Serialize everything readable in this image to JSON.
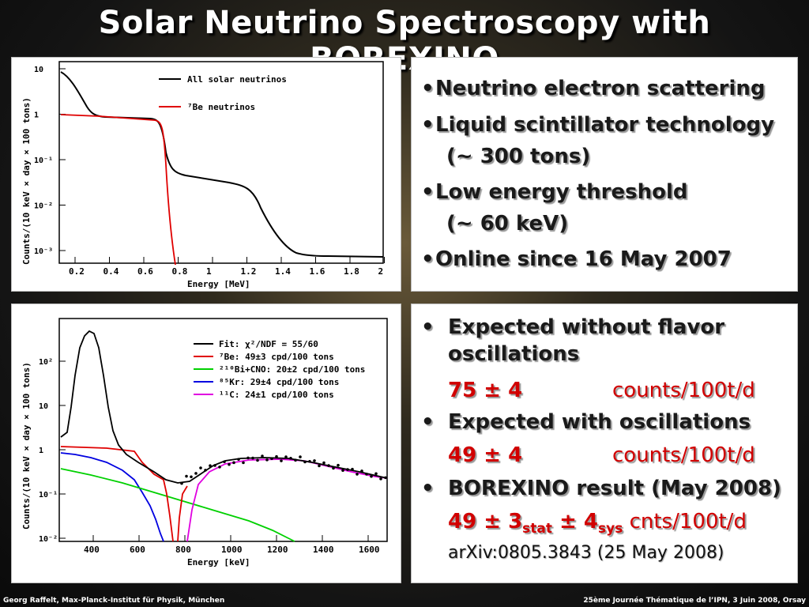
{
  "title": "Solar Neutrino Spectroscopy with BOREXINO",
  "plot1": {
    "ylabel": "Counts/(10 keV × day × 100 tons)",
    "xlabel": "Energy [MeV]",
    "xticks": [
      "0.2",
      "0.4",
      "0.6",
      "0.8",
      "1",
      "1.2",
      "1.4",
      "1.6",
      "1.8",
      "2"
    ],
    "yticks": [
      "10",
      "1",
      "10⁻¹",
      "10⁻²",
      "10⁻³"
    ],
    "legend": [
      {
        "label": "All solar neutrinos",
        "color": "#000000"
      },
      {
        "label": "⁷Be neutrinos",
        "color": "#e00000"
      }
    ]
  },
  "bullets1": [
    {
      "text": "Neutrino electron scattering"
    },
    {
      "text": "Liquid scintillator technology",
      "line2": "(~ 300 tons)"
    },
    {
      "text": "Low energy threshold",
      "line2": "(~ 60 keV)"
    },
    {
      "text": "Online since 16 May 2007"
    }
  ],
  "plot2": {
    "ylabel": "Counts/(10 keV × day × 100 tons)",
    "xlabel": "Energy [keV]",
    "xticks": [
      "400",
      "600",
      "800",
      "1000",
      "1200",
      "1400",
      "1600"
    ],
    "yticks": [
      "10²",
      "10",
      "1",
      "10⁻¹",
      "10⁻²"
    ],
    "legend": [
      {
        "label": "Fit: χ²/NDF = 55/60",
        "color": "#000000"
      },
      {
        "label": "⁷Be: 49±3 cpd/100 tons",
        "color": "#e00000"
      },
      {
        "label": "²¹⁰Bi+CNO: 20±2 cpd/100 tons",
        "color": "#00d000"
      },
      {
        "label": "⁸⁵Kr: 29±4 cpd/100 tons",
        "color": "#0000e0"
      },
      {
        "label": "¹¹C: 24±1 cpd/100 tons",
        "color": "#e000e0"
      }
    ]
  },
  "bullets2": {
    "b1_line1": "Expected without flavor",
    "b1_line2": "oscillations",
    "v1": "75 ± 4",
    "u1": "counts/100t/d",
    "b2": "Expected with oscillations",
    "v2": "49 ± 4",
    "u2": "counts/100t/d",
    "b3": "BOREXINO result (May 2008)",
    "v3_main": "49 ± 3",
    "v3_sub1": "stat",
    "v3_mid": " ± 4",
    "v3_sub2": "sys",
    "v3_unit": " cnts/100t/d",
    "arxiv": "arXiv:0805.3843 (25 May 2008)"
  },
  "footer_left": "Georg Raffelt, Max-Planck-Institut für Physik, München",
  "footer_right": "25ème Journée Thématique de l’IPN, 3 Juin 2008, Orsay"
}
